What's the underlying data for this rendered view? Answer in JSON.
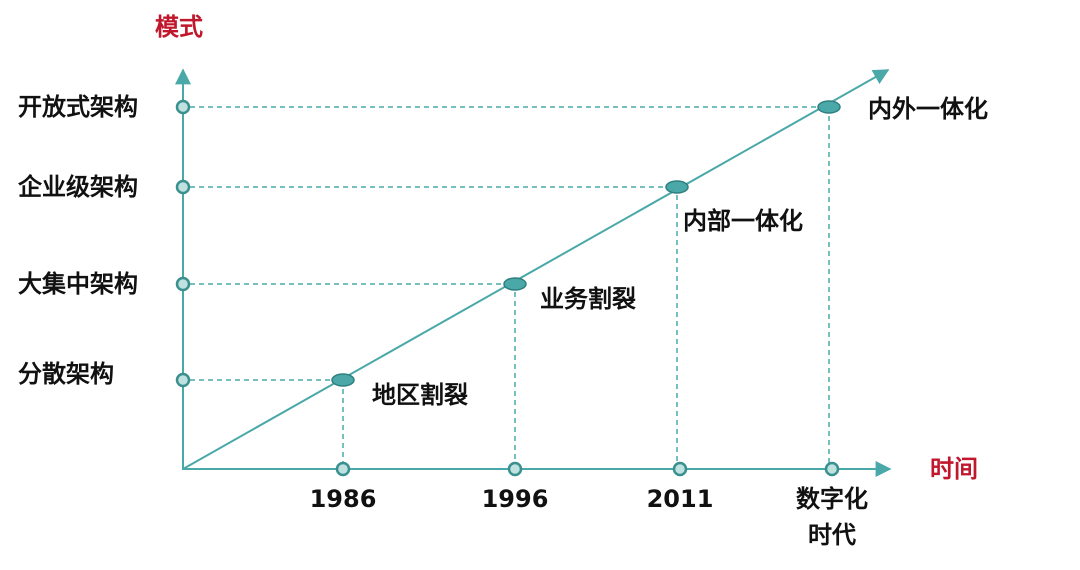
{
  "y_axis": {
    "title": "模式",
    "levels": [
      "开放式架构",
      "企业级架构",
      "大集中架构",
      "分散架构"
    ]
  },
  "x_axis": {
    "title": "时间",
    "ticks": [
      {
        "lines": [
          "1986"
        ]
      },
      {
        "lines": [
          "1996"
        ]
      },
      {
        "lines": [
          "2011"
        ]
      },
      {
        "lines": [
          "数字化",
          "时代"
        ]
      }
    ]
  },
  "stages": [
    "地区割裂",
    "业务割裂",
    "内部一体化",
    "内外一体化"
  ]
}
